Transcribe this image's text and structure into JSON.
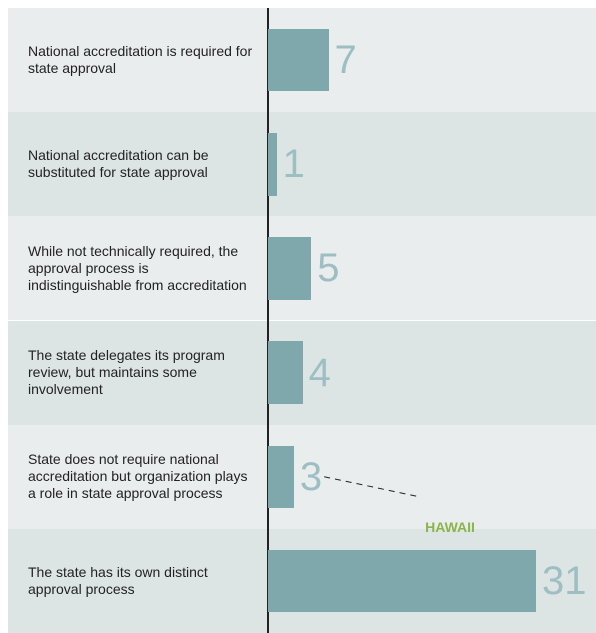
{
  "chart_data": {
    "type": "bar",
    "categories": [
      "National accreditation is required for state approval",
      "National accreditation can be substituted for state approval",
      "While not technically required, the approval process is indistinguishable from accreditation",
      "The state delegates its program review, but maintains some involvement",
      "State does not require national accreditation but organization plays a role in state approval process",
      "The state has its own distinct approval process"
    ],
    "values": [
      7,
      1,
      5,
      4,
      3,
      31
    ],
    "color": "#7fa8ad",
    "annotation": {
      "text": "HAWAII",
      "category_index": 4
    }
  }
}
